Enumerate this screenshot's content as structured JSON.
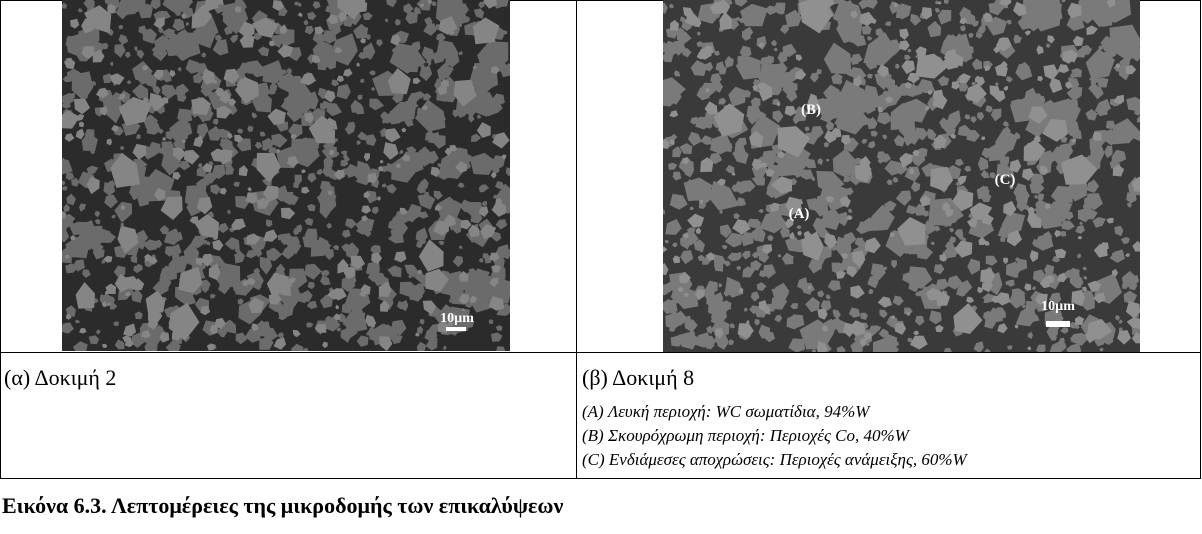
{
  "figure": {
    "panels": [
      {
        "scale_label": "10µm",
        "caption": "(α) Δοκιμή 2"
      },
      {
        "scale_label": "10µm",
        "region_labels": [
          "(A)",
          "(B)",
          "(C)"
        ],
        "caption": "(β) Δοκιμή 8",
        "notes": [
          "(A) Λευκή περιοχή: WC σωματίδια, 94%W",
          "(B) Σκουρόχρωμη περιοχή: Περιοχές Co, 40%W",
          "(C) Ενδιάμεσες αποχρώσεις: Περιοχές ανάμειξης, 60%W"
        ]
      }
    ],
    "caption": "Εικόνα 6.3. Λεπτομέρειες της μικροδομής των επικαλύψεων"
  }
}
